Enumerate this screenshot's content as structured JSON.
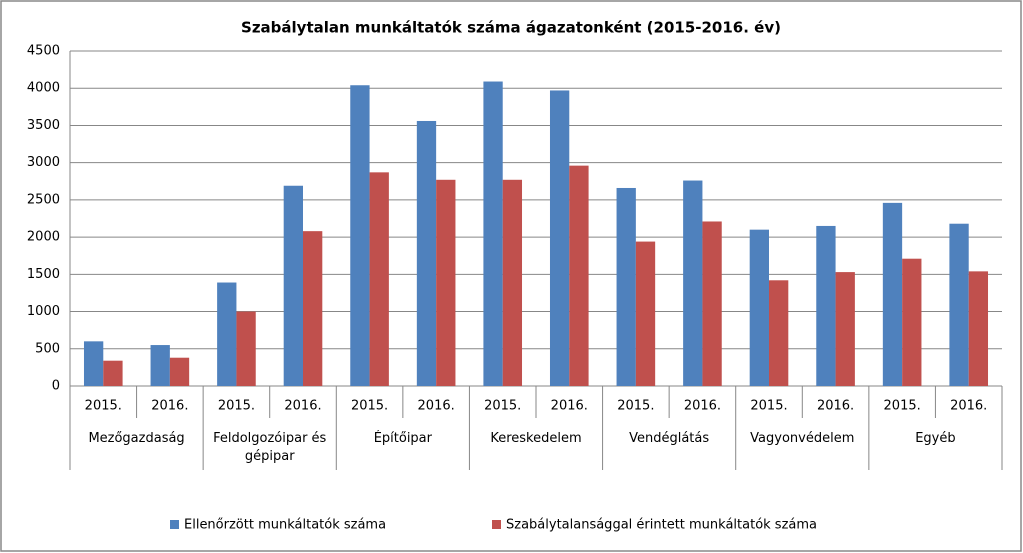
{
  "chart_data": {
    "type": "bar",
    "title": "Szabálytalan munkáltatók száma ágazatonként (2015-2016. év)",
    "categories": [
      "2015.",
      "2016.",
      "2015.",
      "2016.",
      "2015.",
      "2016.",
      "2015.",
      "2016.",
      "2015.",
      "2016.",
      "2015.",
      "2016.",
      "2015.",
      "2016."
    ],
    "groups": [
      "Mezőgazdaság",
      "Feldolgozóipar és gépipar",
      "Építőipar",
      "Kereskedelem",
      "Vendéglátás",
      "Vagyonvédelem",
      "Egyéb"
    ],
    "series": [
      {
        "name": "Ellenőrzött munkáltatók száma",
        "color": "#4f81bd",
        "values": [
          600,
          550,
          1390,
          2690,
          4040,
          3560,
          4090,
          3970,
          2660,
          2760,
          2100,
          2150,
          2460,
          2180
        ]
      },
      {
        "name": "Szabálytalansággal érintett munkáltatók száma",
        "color": "#c0504d",
        "values": [
          340,
          380,
          1000,
          2080,
          2870,
          2770,
          2770,
          2960,
          1940,
          2210,
          1420,
          1530,
          1710,
          1540
        ]
      }
    ],
    "ylim": [
      0,
      4500
    ],
    "yticks": [
      0,
      500,
      1000,
      1500,
      2000,
      2500,
      3000,
      3500,
      4000,
      4500
    ],
    "grid": true,
    "legend": "bottom"
  }
}
